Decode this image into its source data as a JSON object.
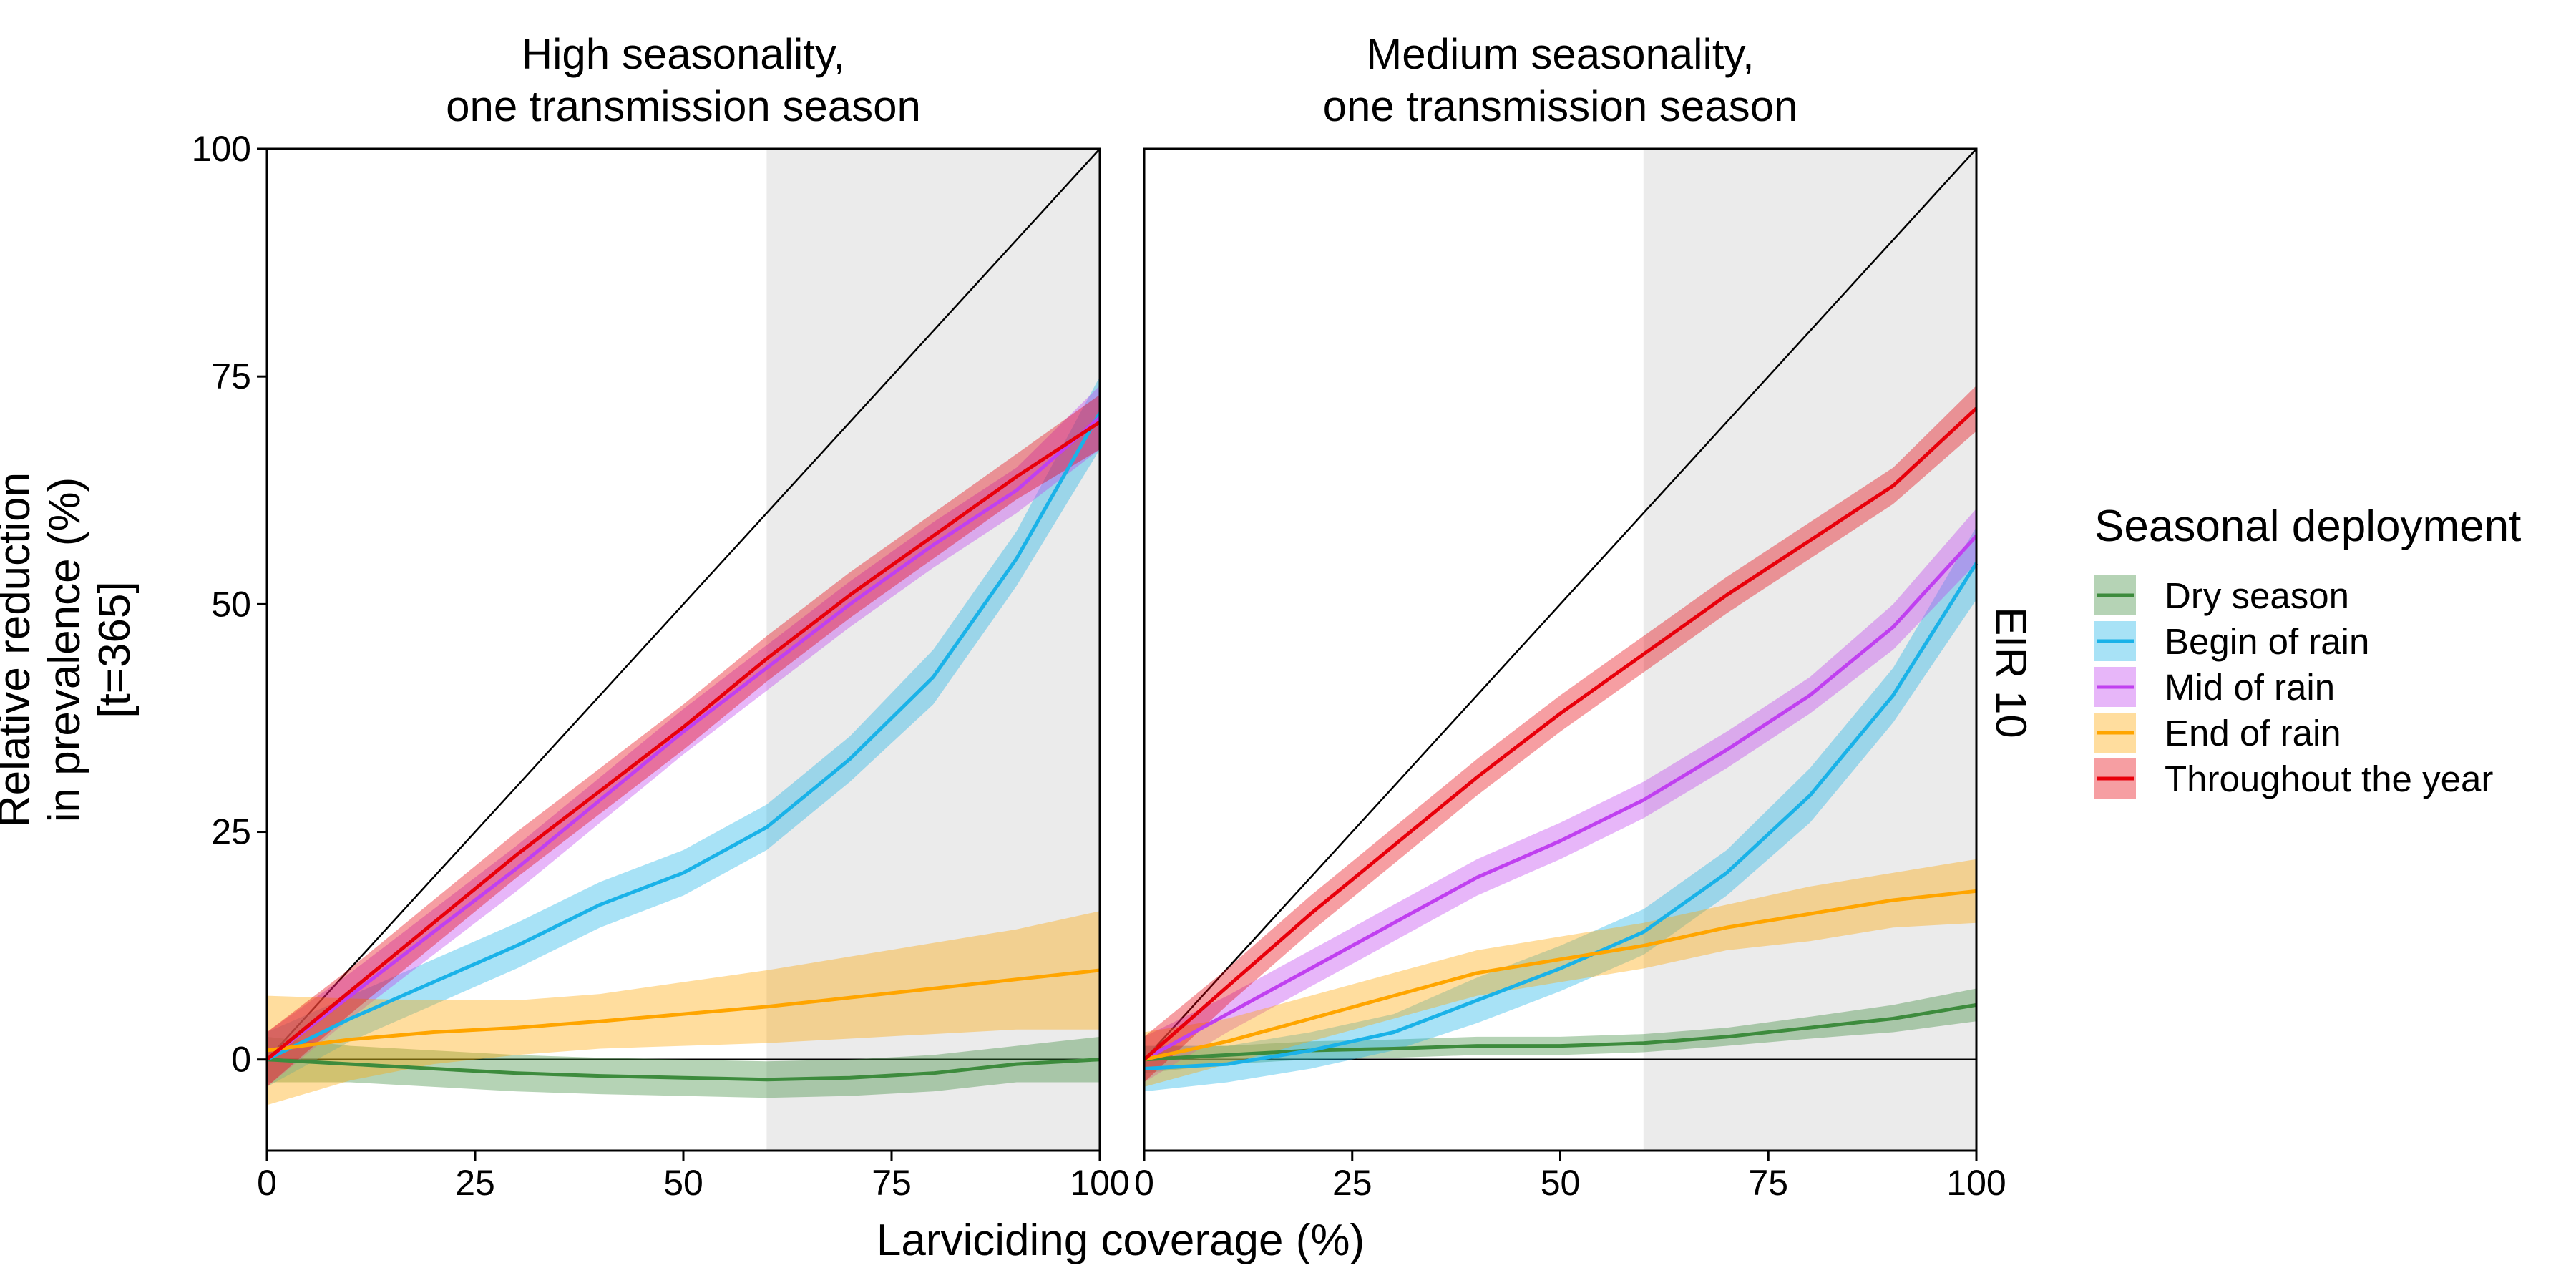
{
  "chart_data": [
    {
      "type": "line",
      "title": "High seasonality,\none transmission season",
      "xlabel": "Larviciding coverage (%)",
      "ylabel": "Relative reduction\nin prevalence (%)\n[t=365]",
      "xlim": [
        0,
        100
      ],
      "ylim": [
        -10,
        100
      ],
      "xticks": [
        "0",
        "25",
        "50",
        "75",
        "100"
      ],
      "yticks": [
        "0",
        "25",
        "50",
        "75",
        "100"
      ],
      "shaded_region": [
        60,
        100
      ],
      "reference_lines": [
        "y = x",
        "y = 0"
      ],
      "x": [
        0,
        10,
        20,
        30,
        40,
        50,
        60,
        70,
        80,
        90,
        100
      ],
      "series": [
        {
          "name": "Dry season",
          "color": "#3d8b3d",
          "values": [
            0,
            -0.5,
            -1,
            -1.5,
            -1.8,
            -2,
            -2.2,
            -2,
            -1.5,
            -0.5,
            0
          ],
          "band": [
            2.5,
            2,
            2,
            2,
            2,
            2,
            2,
            2,
            2,
            2,
            2.5
          ]
        },
        {
          "name": "Begin of rain",
          "color": "#1ab2e8",
          "values": [
            0,
            4.5,
            8.5,
            12.5,
            17,
            20.5,
            25.5,
            33,
            42,
            55,
            71
          ],
          "band": [
            3,
            2.5,
            2.5,
            2.5,
            2.5,
            2.5,
            2.5,
            2.5,
            3,
            3,
            4
          ]
        },
        {
          "name": "Mid of rain",
          "color": "#c040f0",
          "values": [
            0,
            7,
            14,
            21,
            28.5,
            36,
            43,
            50,
            56.5,
            62.5,
            70.5
          ],
          "band": [
            3,
            2.5,
            2.5,
            2.5,
            2.5,
            2.5,
            2.5,
            2.5,
            2.5,
            2.5,
            3.5
          ]
        },
        {
          "name": "End of rain",
          "color": "#ffa500",
          "values": [
            1,
            2.2,
            3,
            3.5,
            4.2,
            5,
            5.8,
            6.8,
            7.8,
            8.8,
            9.8
          ],
          "band": [
            6,
            4.5,
            3.5,
            3,
            3,
            3.5,
            4,
            4.5,
            5,
            5.5,
            6.5
          ]
        },
        {
          "name": "Throughout the year",
          "color": "#e8000b",
          "values": [
            0,
            7.5,
            15,
            22.5,
            29.5,
            36.5,
            44,
            51,
            57.5,
            64,
            70
          ],
          "band": [
            3,
            2.5,
            2.5,
            2.5,
            2.5,
            2.5,
            2.5,
            2.5,
            2.5,
            2.5,
            3
          ]
        }
      ]
    },
    {
      "type": "line",
      "title": "Medium seasonality,\none transmission season",
      "xlabel": "Larviciding coverage (%)",
      "ylabel": "",
      "xlim": [
        0,
        100
      ],
      "ylim": [
        -10,
        100
      ],
      "xticks": [
        "0",
        "25",
        "50",
        "75",
        "100"
      ],
      "yticks": [],
      "shaded_region": [
        60,
        100
      ],
      "reference_lines": [
        "y = x",
        "y = 0"
      ],
      "strip_label": "EIR 10",
      "x": [
        0,
        10,
        20,
        30,
        40,
        50,
        60,
        70,
        80,
        90,
        100
      ],
      "series": [
        {
          "name": "Dry season",
          "color": "#3d8b3d",
          "values": [
            0,
            0.5,
            1,
            1.2,
            1.5,
            1.5,
            1.8,
            2.5,
            3.5,
            4.5,
            6
          ],
          "band": [
            1.5,
            1,
            1,
            1,
            1,
            1,
            1,
            1,
            1.2,
            1.5,
            1.8
          ]
        },
        {
          "name": "Begin of rain",
          "color": "#1ab2e8",
          "values": [
            -1,
            -0.5,
            1,
            3,
            6.5,
            10,
            14,
            20.5,
            29,
            40,
            54.5
          ],
          "band": [
            2.5,
            2,
            2,
            2,
            2.5,
            2.5,
            2.5,
            2.5,
            3,
            3,
            4
          ]
        },
        {
          "name": "Mid of rain",
          "color": "#c040f0",
          "values": [
            0,
            5,
            10,
            15,
            20,
            24,
            28.5,
            34,
            40,
            47.5,
            57.5
          ],
          "band": [
            2.5,
            2,
            2,
            2,
            2,
            2,
            2,
            2,
            2,
            2.5,
            3
          ]
        },
        {
          "name": "End of rain",
          "color": "#ffa500",
          "values": [
            0,
            2,
            4.5,
            7,
            9.5,
            11,
            12.5,
            14.5,
            16,
            17.5,
            18.5
          ],
          "band": [
            3,
            2.5,
            2.5,
            2.5,
            2.5,
            2.5,
            2.5,
            2.5,
            3,
            3,
            3.5
          ]
        },
        {
          "name": "Throughout the year",
          "color": "#e8000b",
          "values": [
            0,
            8,
            16,
            23.5,
            31,
            38,
            44.5,
            51,
            57,
            63,
            71.5
          ],
          "band": [
            2.5,
            2,
            2,
            2,
            2,
            2,
            2,
            2,
            2,
            2,
            2.5
          ]
        }
      ]
    }
  ],
  "legend": {
    "title": "Seasonal deployment",
    "position": "right",
    "items": [
      {
        "label": "Dry season",
        "color": "#3d8b3d"
      },
      {
        "label": "Begin of rain",
        "color": "#1ab2e8"
      },
      {
        "label": "Mid of rain",
        "color": "#c040f0"
      },
      {
        "label": "End of rain",
        "color": "#ffa500"
      },
      {
        "label": "Throughout the year",
        "color": "#e8000b"
      }
    ]
  }
}
